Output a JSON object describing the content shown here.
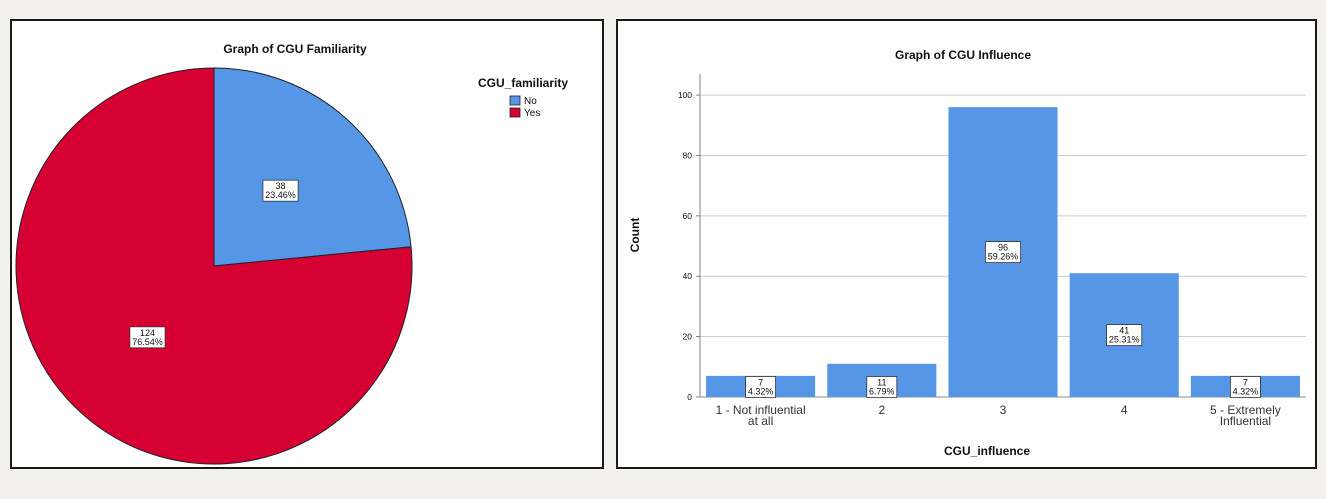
{
  "chart_data": [
    {
      "type": "pie",
      "title": "Graph of CGU Familiarity",
      "legend_title": "CGU_familiarity",
      "legend_position": "top-right",
      "categories": [
        "No",
        "Yes"
      ],
      "values": [
        38,
        124
      ],
      "percent_labels": [
        "23.46%",
        "76.54%"
      ],
      "colors": [
        "#5596e6",
        "#d60032"
      ]
    },
    {
      "type": "bar",
      "title": "Graph of CGU Influence",
      "xlabel": "CGU_influence",
      "ylabel": "Count",
      "categories": [
        [
          "1 - Not influential",
          "at all"
        ],
        [
          "2"
        ],
        [
          "3"
        ],
        [
          "4"
        ],
        [
          "5 - Extremely",
          "Influential"
        ]
      ],
      "values": [
        7,
        11,
        96,
        41,
        7
      ],
      "percent_labels": [
        "4.32%",
        "6.79%",
        "59.26%",
        "25.31%",
        "4.32%"
      ],
      "ylim": [
        0,
        105
      ],
      "yticks": [
        0,
        20,
        40,
        60,
        80,
        100
      ],
      "grid": true,
      "bar_color": "#5596e6"
    }
  ]
}
